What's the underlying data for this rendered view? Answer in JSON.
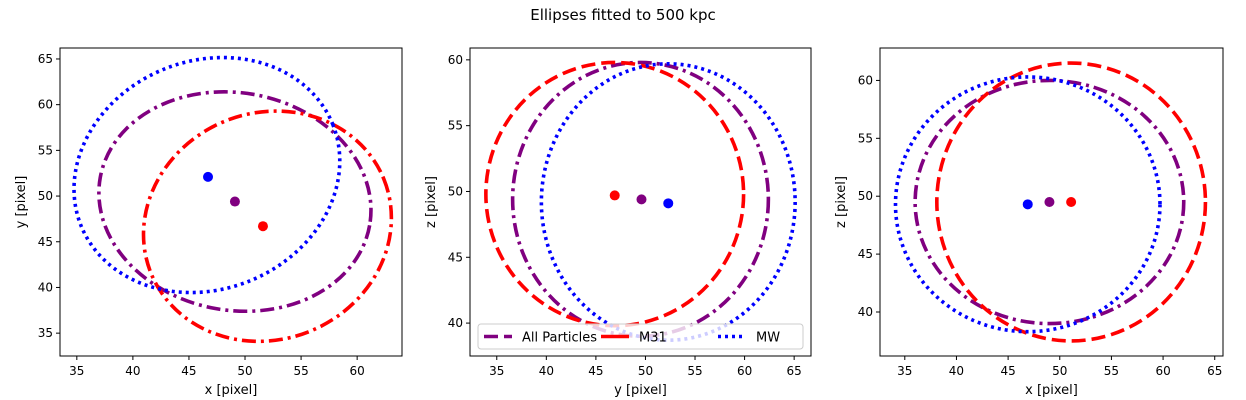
{
  "figure": {
    "title": "Ellipses fitted to 500 kpc"
  },
  "legend": {
    "location": "lower center of middle panel",
    "entries": [
      {
        "name": "All Particles",
        "color": "#800080",
        "style": "dashed"
      },
      {
        "name": "M31",
        "color": "#ff0000",
        "style": "solid"
      },
      {
        "name": "MW",
        "color": "#0000ff",
        "style": "dotted"
      }
    ]
  },
  "colors": {
    "all": "#800080",
    "m31": "#ff0000",
    "mw": "#0000ff"
  },
  "chart_data": [
    {
      "type": "scatter",
      "xlabel": "x [pixel]",
      "ylabel": "y [pixel]",
      "xlim": [
        33.5,
        64.0
      ],
      "ylim": [
        32.5,
        66.2
      ],
      "xticks": [
        "35",
        "40",
        "45",
        "50",
        "55",
        "60"
      ],
      "yticks": [
        "35",
        "40",
        "45",
        "50",
        "55",
        "60",
        "65"
      ],
      "grid": false,
      "series": [
        {
          "key": "all",
          "style": "dashdot",
          "center": [
            49.1,
            49.4
          ],
          "ellipse_center": [
            49.1,
            49.4
          ],
          "radii": [
            12.2,
            11.9
          ],
          "angle_deg": -10
        },
        {
          "key": "m31",
          "style": "dashdot",
          "center": [
            51.6,
            46.7
          ],
          "ellipse_center": [
            52.0,
            46.7
          ],
          "radii": [
            11.2,
            12.4
          ],
          "angle_deg": 22
        },
        {
          "key": "mw",
          "style": "dotted",
          "center": [
            46.7,
            52.1
          ],
          "ellipse_center": [
            46.6,
            52.3
          ],
          "radii": [
            12.1,
            12.5
          ],
          "angle_deg": 22
        }
      ]
    },
    {
      "type": "scatter",
      "xlabel": "y [pixel]",
      "ylabel": "z [pixel]",
      "xlim": [
        32.3,
        66.7
      ],
      "ylim": [
        37.5,
        60.9
      ],
      "xticks": [
        "35",
        "40",
        "45",
        "50",
        "55",
        "60",
        "65"
      ],
      "yticks": [
        "40",
        "45",
        "50",
        "55",
        "60"
      ],
      "grid": false,
      "series": [
        {
          "key": "all",
          "style": "dashdot",
          "center": [
            49.6,
            49.4
          ],
          "ellipse_center": [
            49.5,
            49.4
          ],
          "radii": [
            12.9,
            10.4
          ],
          "angle_deg": 0
        },
        {
          "key": "m31",
          "style": "dashed",
          "center": [
            46.9,
            49.7
          ],
          "ellipse_center": [
            46.9,
            49.8
          ],
          "radii": [
            13.0,
            10.0
          ],
          "angle_deg": 0
        },
        {
          "key": "mw",
          "style": "dotted",
          "center": [
            52.3,
            49.1
          ],
          "ellipse_center": [
            52.3,
            49.2
          ],
          "radii": [
            12.8,
            10.5
          ],
          "angle_deg": 0
        }
      ]
    },
    {
      "type": "scatter",
      "xlabel": "x [pixel]",
      "ylabel": "z [pixel]",
      "xlim": [
        32.6,
        65.8
      ],
      "ylim": [
        36.2,
        62.8
      ],
      "xticks": [
        "35",
        "40",
        "45",
        "50",
        "55",
        "60",
        "65"
      ],
      "yticks": [
        "40",
        "45",
        "50",
        "55",
        "60"
      ],
      "grid": false,
      "series": [
        {
          "key": "all",
          "style": "dashdot",
          "center": [
            49.0,
            49.5
          ],
          "ellipse_center": [
            49.0,
            49.5
          ],
          "radii": [
            13.0,
            10.5
          ],
          "angle_deg": 0
        },
        {
          "key": "m31",
          "style": "dashed",
          "center": [
            51.1,
            49.5
          ],
          "ellipse_center": [
            51.1,
            49.5
          ],
          "radii": [
            13.0,
            12.0
          ],
          "angle_deg": 0
        },
        {
          "key": "mw",
          "style": "dotted",
          "center": [
            46.9,
            49.3
          ],
          "ellipse_center": [
            46.9,
            49.3
          ],
          "radii": [
            12.8,
            11.0
          ],
          "angle_deg": 0
        }
      ]
    }
  ]
}
